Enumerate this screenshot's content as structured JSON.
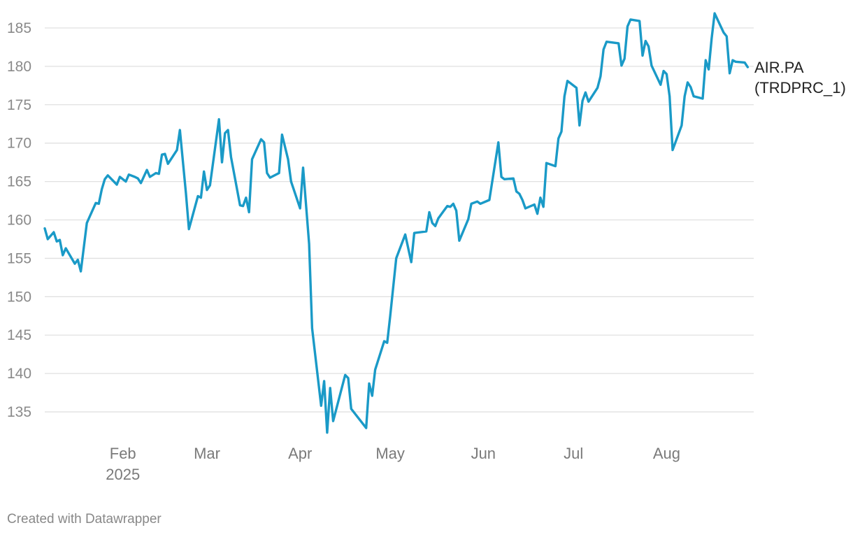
{
  "chart_data": {
    "type": "line",
    "y_ticks": [
      135,
      140,
      145,
      150,
      155,
      160,
      165,
      170,
      175,
      180,
      185
    ],
    "ylim": [
      132,
      187
    ],
    "xlim": [
      "2025-01-06",
      "2025-08-30"
    ],
    "grid": true,
    "x_ticks": [
      {
        "date": "2025-02-01",
        "label": "Feb",
        "sublabel": "2025"
      },
      {
        "date": "2025-03-01",
        "label": "Mar"
      },
      {
        "date": "2025-04-01",
        "label": "Apr"
      },
      {
        "date": "2025-05-01",
        "label": "May"
      },
      {
        "date": "2025-06-01",
        "label": "Jun"
      },
      {
        "date": "2025-07-01",
        "label": "Jul"
      },
      {
        "date": "2025-08-01",
        "label": "Aug"
      }
    ],
    "series": [
      {
        "name": "AIR.PA (TRDPRC_1)",
        "name_lines": [
          "AIR.PA",
          "(TRDPRC_1)"
        ],
        "color": "#1a9ac7",
        "points": [
          [
            "2025-01-06",
            158.9
          ],
          [
            "2025-01-07",
            157.5
          ],
          [
            "2025-01-09",
            158.4
          ],
          [
            "2025-01-10",
            157.2
          ],
          [
            "2025-01-11",
            157.4
          ],
          [
            "2025-01-12",
            155.4
          ],
          [
            "2025-01-13",
            156.3
          ],
          [
            "2025-01-16",
            154.3
          ],
          [
            "2025-01-17",
            154.8
          ],
          [
            "2025-01-18",
            153.3
          ],
          [
            "2025-01-20",
            159.6
          ],
          [
            "2025-01-23",
            162.2
          ],
          [
            "2025-01-24",
            162.1
          ],
          [
            "2025-01-25",
            164.0
          ],
          [
            "2025-01-26",
            165.3
          ],
          [
            "2025-01-27",
            165.8
          ],
          [
            "2025-01-30",
            164.6
          ],
          [
            "2025-01-31",
            165.6
          ],
          [
            "2025-02-02",
            165.0
          ],
          [
            "2025-02-03",
            165.9
          ],
          [
            "2025-02-05",
            165.6
          ],
          [
            "2025-02-06",
            165.4
          ],
          [
            "2025-02-07",
            164.8
          ],
          [
            "2025-02-09",
            166.5
          ],
          [
            "2025-02-10",
            165.6
          ],
          [
            "2025-02-12",
            166.1
          ],
          [
            "2025-02-13",
            166.0
          ],
          [
            "2025-02-14",
            168.5
          ],
          [
            "2025-02-15",
            168.6
          ],
          [
            "2025-02-16",
            167.3
          ],
          [
            "2025-02-19",
            169.1
          ],
          [
            "2025-02-20",
            171.7
          ],
          [
            "2025-02-22",
            163.5
          ],
          [
            "2025-02-23",
            158.8
          ],
          [
            "2025-02-26",
            163.1
          ],
          [
            "2025-02-27",
            162.9
          ],
          [
            "2025-02-28",
            166.3
          ],
          [
            "2025-03-01",
            163.9
          ],
          [
            "2025-03-02",
            164.5
          ],
          [
            "2025-03-05",
            173.1
          ],
          [
            "2025-03-06",
            167.5
          ],
          [
            "2025-03-07",
            171.3
          ],
          [
            "2025-03-08",
            171.7
          ],
          [
            "2025-03-09",
            168.2
          ],
          [
            "2025-03-12",
            161.9
          ],
          [
            "2025-03-13",
            161.8
          ],
          [
            "2025-03-14",
            162.9
          ],
          [
            "2025-03-15",
            161.0
          ],
          [
            "2025-03-16",
            167.9
          ],
          [
            "2025-03-19",
            170.5
          ],
          [
            "2025-03-20",
            170.1
          ],
          [
            "2025-03-21",
            166.1
          ],
          [
            "2025-03-22",
            165.5
          ],
          [
            "2025-03-25",
            166.1
          ],
          [
            "2025-03-26",
            171.1
          ],
          [
            "2025-03-28",
            167.9
          ],
          [
            "2025-03-29",
            165.0
          ],
          [
            "2025-04-01",
            161.5
          ],
          [
            "2025-04-02",
            166.8
          ],
          [
            "2025-04-04",
            156.9
          ],
          [
            "2025-04-05",
            145.9
          ],
          [
            "2025-04-08",
            135.8
          ],
          [
            "2025-04-09",
            139.0
          ],
          [
            "2025-04-10",
            132.3
          ],
          [
            "2025-04-11",
            138.1
          ],
          [
            "2025-04-12",
            133.8
          ],
          [
            "2025-04-16",
            139.8
          ],
          [
            "2025-04-17",
            139.4
          ],
          [
            "2025-04-18",
            135.4
          ],
          [
            "2025-04-23",
            132.9
          ],
          [
            "2025-04-24",
            138.7
          ],
          [
            "2025-04-25",
            137.1
          ],
          [
            "2025-04-26",
            140.5
          ],
          [
            "2025-04-29",
            144.2
          ],
          [
            "2025-04-30",
            144.0
          ],
          [
            "2025-05-01",
            147.5
          ],
          [
            "2025-05-03",
            155.0
          ],
          [
            "2025-05-06",
            158.1
          ],
          [
            "2025-05-08",
            154.5
          ],
          [
            "2025-05-09",
            158.3
          ],
          [
            "2025-05-13",
            158.5
          ],
          [
            "2025-05-14",
            161.0
          ],
          [
            "2025-05-15",
            159.6
          ],
          [
            "2025-05-16",
            159.2
          ],
          [
            "2025-05-17",
            160.2
          ],
          [
            "2025-05-20",
            161.8
          ],
          [
            "2025-05-21",
            161.7
          ],
          [
            "2025-05-22",
            162.1
          ],
          [
            "2025-05-23",
            161.2
          ],
          [
            "2025-05-24",
            157.3
          ],
          [
            "2025-05-27",
            160.1
          ],
          [
            "2025-05-28",
            162.1
          ],
          [
            "2025-05-30",
            162.4
          ],
          [
            "2025-05-31",
            162.1
          ],
          [
            "2025-06-03",
            162.6
          ],
          [
            "2025-06-06",
            170.1
          ],
          [
            "2025-06-07",
            165.6
          ],
          [
            "2025-06-08",
            165.3
          ],
          [
            "2025-06-11",
            165.4
          ],
          [
            "2025-06-12",
            163.7
          ],
          [
            "2025-06-13",
            163.4
          ],
          [
            "2025-06-14",
            162.6
          ],
          [
            "2025-06-15",
            161.5
          ],
          [
            "2025-06-18",
            162.0
          ],
          [
            "2025-06-19",
            160.8
          ],
          [
            "2025-06-20",
            162.9
          ],
          [
            "2025-06-21",
            161.7
          ],
          [
            "2025-06-22",
            167.4
          ],
          [
            "2025-06-25",
            167.0
          ],
          [
            "2025-06-26",
            170.6
          ],
          [
            "2025-06-27",
            171.5
          ],
          [
            "2025-06-28",
            176.1
          ],
          [
            "2025-06-29",
            178.1
          ],
          [
            "2025-07-02",
            177.2
          ],
          [
            "2025-07-03",
            172.3
          ],
          [
            "2025-07-04",
            175.5
          ],
          [
            "2025-07-05",
            176.6
          ],
          [
            "2025-07-06",
            175.4
          ],
          [
            "2025-07-09",
            177.2
          ],
          [
            "2025-07-10",
            178.7
          ],
          [
            "2025-07-11",
            182.2
          ],
          [
            "2025-07-12",
            183.2
          ],
          [
            "2025-07-16",
            183.0
          ],
          [
            "2025-07-17",
            180.1
          ],
          [
            "2025-07-18",
            181.0
          ],
          [
            "2025-07-19",
            185.2
          ],
          [
            "2025-07-20",
            186.1
          ],
          [
            "2025-07-23",
            185.9
          ],
          [
            "2025-07-24",
            181.4
          ],
          [
            "2025-07-25",
            183.3
          ],
          [
            "2025-07-26",
            182.6
          ],
          [
            "2025-07-27",
            180.1
          ],
          [
            "2025-07-30",
            177.6
          ],
          [
            "2025-07-31",
            179.4
          ],
          [
            "2025-08-01",
            179.0
          ],
          [
            "2025-08-02",
            176.1
          ],
          [
            "2025-08-03",
            169.1
          ],
          [
            "2025-08-06",
            172.3
          ],
          [
            "2025-08-07",
            176.1
          ],
          [
            "2025-08-08",
            177.9
          ],
          [
            "2025-08-09",
            177.3
          ],
          [
            "2025-08-10",
            176.1
          ],
          [
            "2025-08-13",
            175.8
          ],
          [
            "2025-08-14",
            180.8
          ],
          [
            "2025-08-15",
            179.6
          ],
          [
            "2025-08-16",
            183.6
          ],
          [
            "2025-08-17",
            186.9
          ],
          [
            "2025-08-20",
            184.4
          ],
          [
            "2025-08-21",
            183.9
          ],
          [
            "2025-08-22",
            179.1
          ],
          [
            "2025-08-23",
            180.8
          ],
          [
            "2025-08-24",
            180.6
          ],
          [
            "2025-08-27",
            180.5
          ],
          [
            "2025-08-28",
            179.9
          ]
        ]
      }
    ]
  },
  "footer": {
    "credit": "Created with Datawrapper"
  }
}
